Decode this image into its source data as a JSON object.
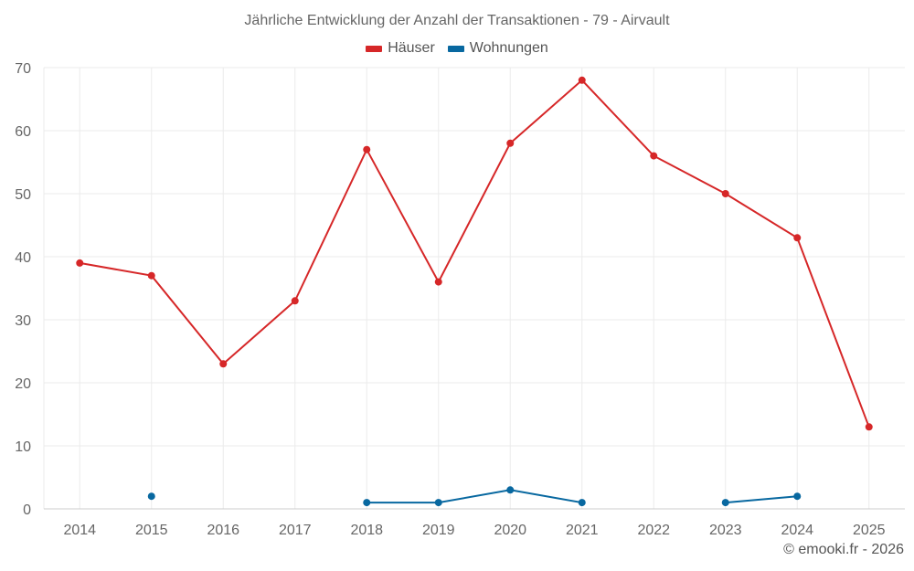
{
  "chart_data": {
    "type": "line",
    "title": "Jährliche Entwicklung der Anzahl der Transaktionen - 79 - Airvault",
    "categories": [
      "2014",
      "2015",
      "2016",
      "2017",
      "2018",
      "2019",
      "2020",
      "2021",
      "2022",
      "2023",
      "2024",
      "2025"
    ],
    "series": [
      {
        "name": "Häuser",
        "color": "#d62728",
        "values": [
          39,
          37,
          23,
          33,
          57,
          36,
          58,
          68,
          56,
          50,
          43,
          13
        ]
      },
      {
        "name": "Wohnungen",
        "color": "#0868a0",
        "values": [
          null,
          2,
          null,
          null,
          1,
          1,
          3,
          1,
          null,
          1,
          2,
          null
        ]
      }
    ],
    "ylim": [
      0,
      70
    ],
    "yticks": [
      0,
      10,
      20,
      30,
      40,
      50,
      60,
      70
    ],
    "xlabel": "",
    "ylabel": "",
    "grid": true,
    "legend": "top-center"
  },
  "credit": "© emooki.fr - 2026"
}
